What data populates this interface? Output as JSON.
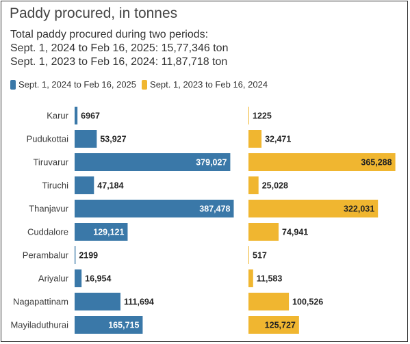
{
  "title": "Paddy procured, in tonnes",
  "subtitle_lines": [
    "Total paddy procured during two periods:",
    "Sept. 1, 2024 to Feb 16, 2025: 15,77,346 ton",
    "Sept. 1, 2023 to Feb 16, 2024: 11,87,718 ton"
  ],
  "colors": {
    "series1": "#3a78a8",
    "series2": "#f0b630",
    "inside_text_s1": "#ffffff",
    "inside_text_s2": "#222222",
    "outside_text": "#222222"
  },
  "chart_data": {
    "type": "bar",
    "orientation": "horizontal",
    "categories": [
      "Karur",
      "Pudukottai",
      "Tiruvarur",
      "Tiruchi",
      "Thanjavur",
      "Cuddalore",
      "Perambalur",
      "Ariyalur",
      "Nagapattinam",
      "Mayiladuthurai"
    ],
    "series": [
      {
        "name": "Sept. 1, 2024 to Feb 16, 2025",
        "values": [
          6967,
          53927,
          379027,
          47184,
          387478,
          129121,
          2199,
          16954,
          111694,
          165715
        ],
        "labels": [
          "6967",
          "53,927",
          "379,027",
          "47,184",
          "387,478",
          "129,121",
          "2199",
          "16,954",
          "111,694",
          "165,715"
        ]
      },
      {
        "name": "Sept. 1, 2023 to Feb 16, 2024",
        "values": [
          1225,
          32471,
          365288,
          25028,
          322031,
          74941,
          517,
          11583,
          100526,
          125727
        ],
        "labels": [
          "1225",
          "32,471",
          "365,288",
          "25,028",
          "322,031",
          "74,941",
          "517",
          "11,583",
          "100,526",
          "125,727"
        ]
      }
    ]
  }
}
